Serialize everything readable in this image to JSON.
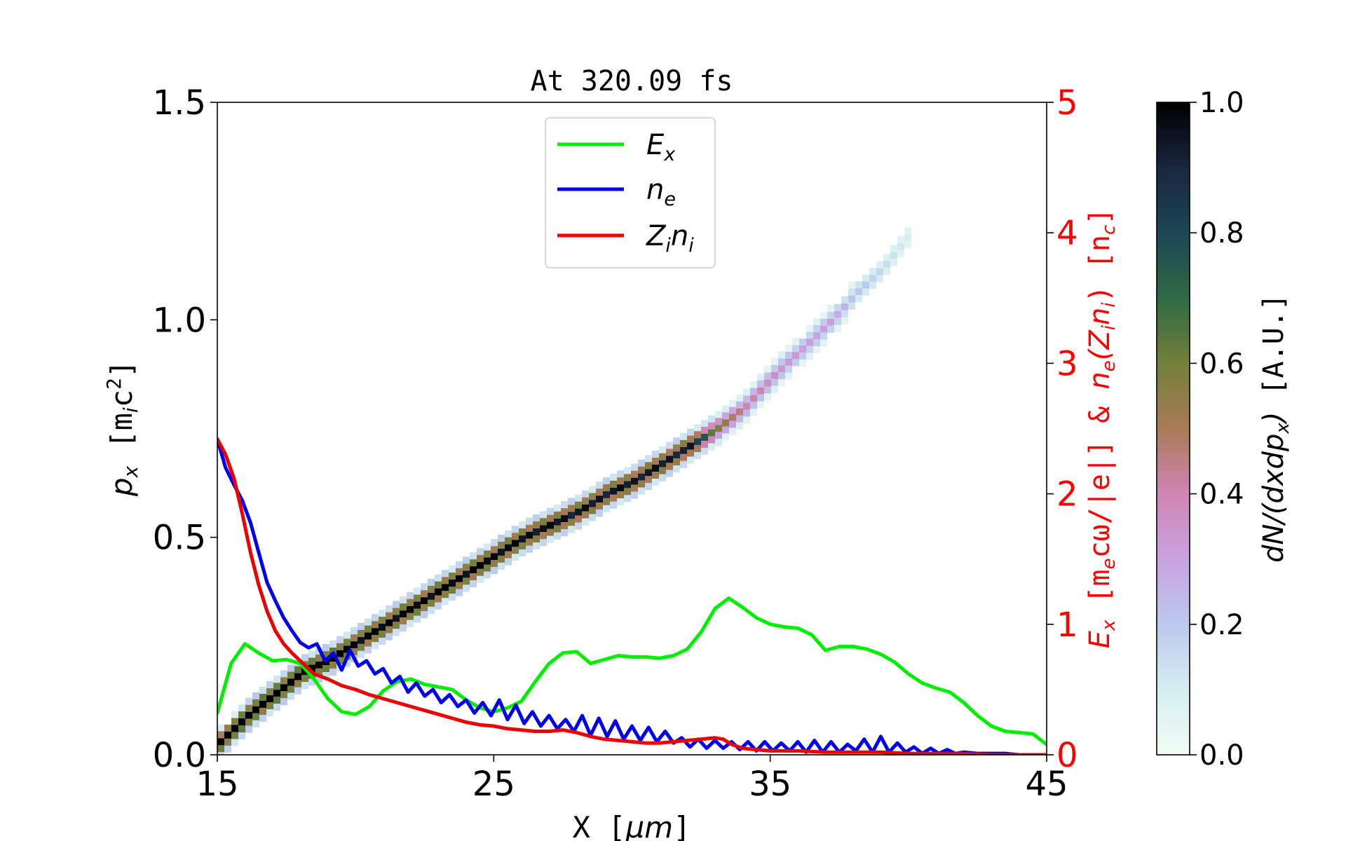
{
  "chart_data": {
    "type": "line",
    "title": "At 320.09 fs",
    "xlabel": "X [μm]",
    "xlabel_parts": {
      "pre": "X [",
      "sym": "μm",
      "post": "]"
    },
    "ylabel_left": "p_x [m_i c^2]",
    "ylabel_left_parts": {
      "sym": "p",
      "sub": "x",
      "unit_pre": " [m",
      "unit_sub": "i",
      "unit_post": "c",
      "unit_sup": "2",
      "close": "]"
    },
    "ylabel_right": "E_x [m_e c ω/|e|] & n_e(Z_i n_i) [n_c]",
    "ylabel_right_parts": {
      "e_sym": "E",
      "e_sub": "x",
      "unit1": " [m",
      "unit1_sub": "e",
      "unit1_rest": "cω/|e|] & ",
      "n_sym": "n",
      "n_sub": "e",
      "paren": "(Z",
      "z_sub": "i",
      "n2": "n",
      "n2_sub": "i",
      "close": ") [n",
      "nc_sub": "c",
      "end": "]"
    },
    "colorbar_label": "dN/(dxdp_x) [A.U.]",
    "colorbar_label_parts": {
      "expr": "dN/(dxdp",
      "sub": "x",
      "close": ")",
      "unit": " [A.U.]"
    },
    "xlim": [
      15,
      45
    ],
    "xticks": [
      "15",
      "25",
      "35",
      "45"
    ],
    "xtick_values": [
      15,
      25,
      35,
      45
    ],
    "ylim_left": [
      0,
      1.5
    ],
    "yticks_left": [
      "0.0",
      "0.5",
      "1.0",
      "1.5"
    ],
    "ytick_values_left": [
      0,
      0.5,
      1.0,
      1.5
    ],
    "ylim_right": [
      0,
      5
    ],
    "yticks_right": [
      "0",
      "1",
      "2",
      "3",
      "4",
      "5"
    ],
    "ytick_values_right": [
      0,
      1,
      2,
      3,
      4,
      5
    ],
    "colorbar_range": [
      0,
      1
    ],
    "colorbar_ticks": [
      "0.0",
      "0.2",
      "0.4",
      "0.6",
      "0.8",
      "1.0"
    ],
    "colorbar_tick_values": [
      0,
      0.2,
      0.4,
      0.6,
      0.8,
      1.0
    ],
    "legend_position": "top-center",
    "grid": false,
    "colors": {
      "Ex": "#00ee00",
      "ne": "#0000ee",
      "Zini": "#ee0000",
      "right_axis": "#ff0000"
    },
    "legend": [
      {
        "sym": "E",
        "sub": "x",
        "sub2": "",
        "key": "Ex"
      },
      {
        "sym": "n",
        "sub": "e",
        "sub2": "",
        "key": "ne"
      },
      {
        "sym": "Z",
        "sub": "i",
        "sym2": "n",
        "sub2": "i",
        "key": "Zini"
      }
    ],
    "series": [
      {
        "name": "Ex",
        "axis": "right",
        "color": "#00ee00",
        "x": [
          15,
          15.5,
          16,
          16.5,
          17,
          17.5,
          18,
          18.5,
          19,
          19.5,
          20,
          20.5,
          21,
          21.5,
          22,
          22.5,
          23,
          23.5,
          24,
          24.5,
          25,
          25.5,
          26,
          26.5,
          27,
          27.5,
          28,
          28.5,
          29,
          29.5,
          30,
          30.5,
          31,
          31.5,
          32,
          32.5,
          33,
          33.5,
          34,
          34.5,
          35,
          35.5,
          36,
          36.5,
          37,
          37.5,
          38,
          38.5,
          39,
          39.5,
          40,
          40.5,
          41,
          41.5,
          42,
          42.5,
          43,
          43.5,
          44,
          44.5,
          45
        ],
        "y": [
          0.32,
          0.7,
          0.85,
          0.78,
          0.72,
          0.73,
          0.7,
          0.58,
          0.43,
          0.33,
          0.31,
          0.37,
          0.49,
          0.56,
          0.58,
          0.54,
          0.52,
          0.5,
          0.42,
          0.36,
          0.33,
          0.36,
          0.41,
          0.56,
          0.7,
          0.78,
          0.79,
          0.7,
          0.73,
          0.76,
          0.75,
          0.75,
          0.74,
          0.76,
          0.81,
          0.94,
          1.12,
          1.2,
          1.13,
          1.05,
          1.0,
          0.98,
          0.97,
          0.92,
          0.8,
          0.83,
          0.83,
          0.81,
          0.77,
          0.71,
          0.62,
          0.55,
          0.51,
          0.48,
          0.4,
          0.3,
          0.22,
          0.18,
          0.17,
          0.16,
          0.08
        ]
      },
      {
        "name": "ne",
        "axis": "right",
        "color": "#0000ee",
        "x": [
          15,
          15.3,
          15.6,
          15.9,
          16.2,
          16.5,
          16.8,
          17.1,
          17.4,
          17.7,
          18,
          18.3,
          18.6,
          18.9,
          19.2,
          19.5,
          19.8,
          20.1,
          20.4,
          20.7,
          21,
          21.3,
          21.6,
          21.9,
          22.2,
          22.5,
          22.8,
          23.1,
          23.4,
          23.7,
          24,
          24.3,
          24.6,
          24.9,
          25.2,
          25.5,
          25.8,
          26.1,
          26.4,
          26.7,
          27,
          27.3,
          27.6,
          27.9,
          28.2,
          28.5,
          28.8,
          29.1,
          29.4,
          29.7,
          30,
          30.3,
          30.6,
          30.9,
          31.2,
          31.5,
          31.8,
          32.1,
          32.4,
          32.7,
          33,
          33.3,
          33.6,
          33.9,
          34.2,
          34.5,
          34.8,
          35.1,
          35.4,
          35.7,
          36,
          36.3,
          36.6,
          36.9,
          37.2,
          37.5,
          37.8,
          38.1,
          38.4,
          38.7,
          39,
          39.3,
          39.6,
          39.9,
          40.2,
          40.5,
          40.8,
          41.1,
          41.4,
          41.7,
          42,
          42.5,
          43,
          43.5,
          44,
          44.5,
          45
        ],
        "y": [
          2.42,
          2.2,
          2.07,
          1.95,
          1.78,
          1.55,
          1.32,
          1.18,
          1.05,
          0.95,
          0.86,
          0.82,
          0.85,
          0.72,
          0.78,
          0.65,
          0.8,
          0.68,
          0.72,
          0.62,
          0.66,
          0.55,
          0.6,
          0.48,
          0.55,
          0.45,
          0.5,
          0.4,
          0.46,
          0.37,
          0.42,
          0.32,
          0.4,
          0.3,
          0.42,
          0.27,
          0.38,
          0.24,
          0.33,
          0.22,
          0.3,
          0.2,
          0.27,
          0.18,
          0.3,
          0.15,
          0.28,
          0.14,
          0.26,
          0.12,
          0.22,
          0.11,
          0.21,
          0.1,
          0.18,
          0.09,
          0.13,
          0.06,
          0.12,
          0.05,
          0.11,
          0.05,
          0.1,
          0.04,
          0.1,
          0.03,
          0.1,
          0.03,
          0.09,
          0.03,
          0.1,
          0.02,
          0.11,
          0.02,
          0.1,
          0.02,
          0.08,
          0.03,
          0.12,
          0.02,
          0.14,
          0.02,
          0.09,
          0.02,
          0.06,
          0.01,
          0.05,
          0.01,
          0.04,
          0.01,
          0.02,
          0.01,
          0.01,
          0.01,
          0.0,
          0.0,
          0.0
        ]
      },
      {
        "name": "Zini",
        "axis": "right",
        "color": "#ee0000",
        "x": [
          15,
          15.3,
          15.6,
          15.9,
          16.2,
          16.5,
          16.8,
          17.1,
          17.4,
          17.7,
          18,
          18.5,
          19,
          19.5,
          20,
          20.5,
          21,
          21.5,
          22,
          22.5,
          23,
          23.5,
          24,
          24.5,
          25,
          25.5,
          26,
          26.5,
          27,
          27.5,
          28,
          28.5,
          29,
          29.5,
          30,
          30.5,
          31,
          31.5,
          32,
          32.5,
          33,
          33.3,
          33.6,
          34,
          34.5,
          35,
          36,
          37,
          38,
          39,
          40,
          41,
          42,
          43,
          44,
          45
        ],
        "y": [
          2.42,
          2.3,
          2.12,
          1.85,
          1.55,
          1.3,
          1.1,
          0.95,
          0.85,
          0.78,
          0.72,
          0.62,
          0.58,
          0.53,
          0.5,
          0.46,
          0.43,
          0.4,
          0.37,
          0.34,
          0.31,
          0.28,
          0.25,
          0.23,
          0.22,
          0.2,
          0.19,
          0.18,
          0.18,
          0.19,
          0.17,
          0.14,
          0.12,
          0.11,
          0.1,
          0.09,
          0.09,
          0.1,
          0.11,
          0.12,
          0.13,
          0.12,
          0.08,
          0.05,
          0.04,
          0.03,
          0.03,
          0.02,
          0.02,
          0.02,
          0.01,
          0.01,
          0.01,
          0.0,
          0.0,
          0.0
        ]
      },
      {
        "name": "phase_space",
        "axis": "left",
        "kind": "heatmap_band",
        "x": [
          15,
          16,
          17,
          18,
          19,
          20,
          21,
          22,
          23,
          24,
          25,
          26,
          27,
          28,
          29,
          30,
          31,
          32,
          33,
          34,
          35,
          36,
          37,
          38,
          39,
          40
        ],
        "y": [
          0.03,
          0.09,
          0.14,
          0.19,
          0.22,
          0.26,
          0.3,
          0.34,
          0.38,
          0.42,
          0.46,
          0.5,
          0.53,
          0.56,
          0.6,
          0.63,
          0.67,
          0.71,
          0.75,
          0.8,
          0.87,
          0.93,
          0.99,
          1.06,
          1.12,
          1.2
        ],
        "intensity": [
          1.0,
          1.0,
          1.0,
          1.0,
          1.0,
          0.95,
          0.95,
          0.95,
          0.95,
          0.95,
          0.95,
          0.92,
          0.92,
          0.9,
          0.9,
          0.9,
          0.9,
          0.88,
          0.55,
          0.4,
          0.35,
          0.3,
          0.3,
          0.2,
          0.15,
          0.08
        ]
      }
    ]
  }
}
